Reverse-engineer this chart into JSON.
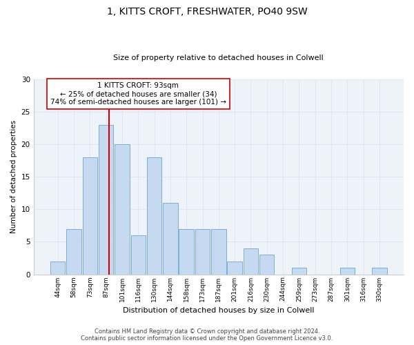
{
  "title": "1, KITTS CROFT, FRESHWATER, PO40 9SW",
  "subtitle": "Size of property relative to detached houses in Colwell",
  "xlabel": "Distribution of detached houses by size in Colwell",
  "ylabel": "Number of detached properties",
  "bar_labels": [
    "44sqm",
    "58sqm",
    "73sqm",
    "87sqm",
    "101sqm",
    "116sqm",
    "130sqm",
    "144sqm",
    "158sqm",
    "173sqm",
    "187sqm",
    "201sqm",
    "216sqm",
    "230sqm",
    "244sqm",
    "259sqm",
    "273sqm",
    "287sqm",
    "301sqm",
    "316sqm",
    "330sqm"
  ],
  "bar_values": [
    2,
    7,
    18,
    23,
    20,
    6,
    18,
    11,
    7,
    7,
    7,
    2,
    4,
    3,
    0,
    1,
    0,
    0,
    1,
    0,
    1
  ],
  "bar_color": "#c5d9f0",
  "bar_edge_color": "#7bafd4",
  "highlight_index": 3,
  "highlight_line_color": "#cc0000",
  "ylim": [
    0,
    30
  ],
  "yticks": [
    0,
    5,
    10,
    15,
    20,
    25,
    30
  ],
  "annotation_text": "1 KITTS CROFT: 93sqm\n← 25% of detached houses are smaller (34)\n74% of semi-detached houses are larger (101) →",
  "annotation_box_color": "#ffffff",
  "annotation_box_edge": "#cc0000",
  "footer_line1": "Contains HM Land Registry data © Crown copyright and database right 2024.",
  "footer_line2": "Contains public sector information licensed under the Open Government Licence v3.0.",
  "grid_color": "#dce8f5",
  "background_color": "#eef3fa"
}
